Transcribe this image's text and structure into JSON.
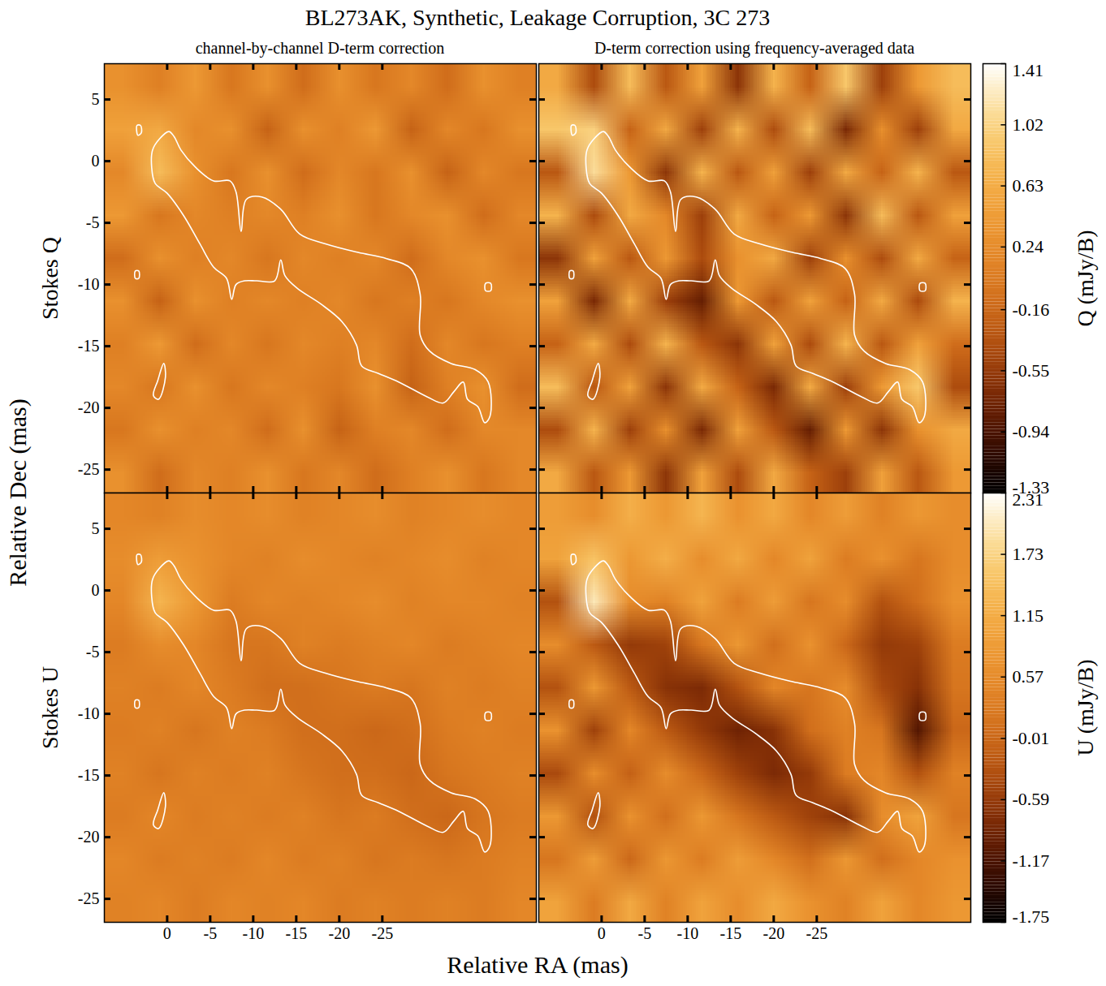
{
  "chart_data": {
    "type": "heatmap",
    "title": "BL273AK, Synthetic, Leakage Corruption, 3C 273",
    "xlabel": "Relative RA (mas)",
    "ylabel": "Relative Dec (mas)",
    "xlim": [
      7.3,
      -42.9
    ],
    "ylim": [
      -26.9,
      7.9
    ],
    "xticks": [
      0,
      -5,
      -10,
      -15,
      -20,
      -25
    ],
    "yticks": [
      5,
      0,
      -5,
      -10,
      -15,
      -20,
      -25
    ],
    "columns": [
      "channel-by-channel D-term correction",
      "D-term correction using frequency-averaged data"
    ],
    "rows": [
      {
        "name": "Stokes Q",
        "colorbar": {
          "label": "Q (mJy/B)",
          "range": [
            -1.33,
            1.41
          ],
          "ticks": [
            -1.33,
            -0.94,
            -0.55,
            -0.16,
            0.24,
            0.63,
            1.02,
            1.41
          ]
        },
        "cells": [
          [
            [
              0.3,
              0.1,
              0.4,
              0.0,
              0.3,
              -0.1,
              0.3,
              0.0,
              0.2,
              -0.1,
              0.3,
              0.1
            ],
            [
              0.5,
              0.6,
              0.2,
              0.3,
              -0.2,
              0.3,
              0.1,
              0.4,
              -0.2,
              0.2,
              0.0,
              0.3
            ],
            [
              0.2,
              0.8,
              0.3,
              0.0,
              0.3,
              -0.1,
              0.2,
              0.0,
              0.3,
              -0.2,
              0.2,
              0.0
            ],
            [
              0.4,
              0.0,
              0.2,
              0.1,
              0.2,
              0.1,
              0.3,
              0.0,
              0.2,
              0.3,
              -0.1,
              0.2
            ],
            [
              -0.1,
              0.3,
              0.1,
              0.2,
              0.0,
              0.2,
              0.1,
              0.2,
              -0.1,
              0.2,
              0.3,
              0.0
            ],
            [
              0.3,
              -0.2,
              0.3,
              0.1,
              0.2,
              0.1,
              0.2,
              0.0,
              0.1,
              0.0,
              0.2,
              0.3
            ],
            [
              0.1,
              0.4,
              -0.1,
              0.2,
              0.0,
              0.2,
              0.1,
              0.2,
              -0.1,
              0.2,
              0.0,
              0.1
            ],
            [
              0.2,
              0.0,
              0.3,
              0.0,
              0.2,
              0.1,
              0.0,
              0.3,
              -0.2,
              0.1,
              0.3,
              -0.1
            ],
            [
              0.0,
              0.3,
              0.1,
              0.2,
              -0.1,
              0.3,
              -0.2,
              0.1,
              0.2,
              -0.1,
              0.2,
              0.2
            ],
            [
              0.3,
              -0.1,
              0.2,
              0.1,
              0.3,
              0.0,
              0.2,
              -0.1,
              0.1,
              0.3,
              0.0,
              0.2
            ]
          ],
          [
            [
              0.6,
              -0.4,
              0.8,
              -0.3,
              0.5,
              -0.6,
              0.7,
              -0.2,
              0.9,
              -0.5,
              0.4,
              0.8
            ],
            [
              0.9,
              1.0,
              -0.2,
              0.6,
              -0.5,
              0.7,
              -0.4,
              0.8,
              -0.7,
              0.3,
              -0.5,
              0.6
            ],
            [
              -0.3,
              1.1,
              0.4,
              -0.6,
              0.7,
              -0.3,
              0.5,
              -0.5,
              0.6,
              -0.2,
              0.7,
              -0.3
            ],
            [
              0.7,
              -0.4,
              0.6,
              0.2,
              -0.5,
              0.6,
              -0.2,
              0.4,
              -0.6,
              0.8,
              -0.3,
              0.5
            ],
            [
              -0.6,
              0.5,
              -0.3,
              0.4,
              -0.4,
              0.3,
              0.6,
              -0.5,
              0.3,
              -0.4,
              0.6,
              -0.2
            ],
            [
              0.5,
              -0.7,
              0.6,
              -0.5,
              -0.8,
              0.4,
              -0.3,
              0.5,
              -0.2,
              0.6,
              -0.4,
              0.7
            ],
            [
              -0.2,
              0.6,
              -0.4,
              0.7,
              -0.3,
              -0.6,
              0.5,
              -0.4,
              0.7,
              -0.3,
              0.5,
              -0.1
            ],
            [
              0.8,
              -0.3,
              0.5,
              -0.6,
              0.6,
              -0.2,
              -0.7,
              0.6,
              -0.5,
              0.4,
              0.9,
              -0.4
            ],
            [
              -0.4,
              0.7,
              -0.5,
              0.3,
              -0.7,
              0.5,
              -0.3,
              -0.8,
              0.4,
              -0.6,
              0.3,
              0.6
            ],
            [
              0.6,
              -0.3,
              0.4,
              -0.6,
              0.5,
              -0.4,
              0.6,
              -0.2,
              -0.5,
              0.5,
              -0.3,
              0.4
            ]
          ]
        ]
      },
      {
        "name": "Stokes U",
        "colorbar": {
          "label": "U (mJy/B)",
          "range": [
            -1.75,
            2.31
          ],
          "ticks": [
            -1.75,
            -1.17,
            -0.59,
            -0.01,
            0.57,
            1.15,
            1.73,
            2.31
          ]
        },
        "cells": [
          [
            [
              0.5,
              0.4,
              0.6,
              0.5,
              0.6,
              0.4,
              0.5,
              0.6,
              0.4,
              0.5,
              0.6,
              0.5
            ],
            [
              0.6,
              0.9,
              0.7,
              0.5,
              0.4,
              0.6,
              0.5,
              0.4,
              0.5,
              0.6,
              0.4,
              0.5
            ],
            [
              0.5,
              1.3,
              0.8,
              0.3,
              0.5,
              0.4,
              0.5,
              0.6,
              0.4,
              0.5,
              0.5,
              0.4
            ],
            [
              0.3,
              0.6,
              0.5,
              0.2,
              0.2,
              0.4,
              0.3,
              0.4,
              0.5,
              0.3,
              0.4,
              0.5
            ],
            [
              0.4,
              0.3,
              0.5,
              0.3,
              0.1,
              0.1,
              0.2,
              0.3,
              0.2,
              0.4,
              0.3,
              0.4
            ],
            [
              0.3,
              0.4,
              0.2,
              0.4,
              0.3,
              0.1,
              0.1,
              0.0,
              0.1,
              0.3,
              0.4,
              0.3
            ],
            [
              0.4,
              0.2,
              0.4,
              0.3,
              0.4,
              0.2,
              0.1,
              0.1,
              0.0,
              0.2,
              0.3,
              0.4
            ],
            [
              0.3,
              0.5,
              0.3,
              0.4,
              0.3,
              0.4,
              0.2,
              0.3,
              0.1,
              0.0,
              0.2,
              0.3
            ],
            [
              0.5,
              0.3,
              0.4,
              0.3,
              0.5,
              0.3,
              0.4,
              0.2,
              0.3,
              0.2,
              0.3,
              0.4
            ],
            [
              0.4,
              0.5,
              0.3,
              0.5,
              0.4,
              0.5,
              0.3,
              0.4,
              0.3,
              0.4,
              0.3,
              0.5
            ]
          ],
          [
            [
              0.9,
              0.6,
              1.2,
              0.8,
              1.3,
              0.7,
              1.1,
              0.5,
              0.9,
              0.4,
              0.8,
              0.6
            ],
            [
              1.0,
              1.5,
              0.8,
              1.2,
              0.6,
              1.1,
              0.5,
              1.0,
              0.3,
              0.7,
              0.2,
              0.6
            ],
            [
              -0.3,
              2.0,
              0.6,
              0.4,
              1.0,
              0.3,
              0.9,
              0.2,
              0.6,
              -0.3,
              0.1,
              0.7
            ],
            [
              0.6,
              -0.2,
              -0.6,
              -0.5,
              0.2,
              0.8,
              0.1,
              0.7,
              0.0,
              -0.6,
              -0.5,
              0.3
            ],
            [
              -0.3,
              0.8,
              -0.2,
              -0.7,
              -0.8,
              -0.3,
              0.5,
              0.2,
              0.6,
              -0.4,
              -0.7,
              0.2
            ],
            [
              0.7,
              -0.5,
              0.5,
              -0.2,
              -0.6,
              -0.9,
              -0.7,
              0.1,
              0.4,
              0.2,
              -1.1,
              0.0
            ],
            [
              -0.4,
              0.6,
              -0.1,
              0.6,
              0.0,
              -0.5,
              -0.8,
              -0.6,
              0.3,
              0.5,
              -0.3,
              0.4
            ],
            [
              0.8,
              -0.3,
              0.7,
              0.1,
              0.8,
              0.2,
              -0.2,
              -0.5,
              -0.7,
              0.6,
              1.0,
              0.2
            ],
            [
              0.2,
              0.9,
              0.0,
              0.8,
              0.3,
              0.9,
              0.5,
              0.1,
              0.8,
              0.1,
              0.5,
              0.7
            ],
            [
              1.0,
              0.3,
              1.1,
              0.4,
              1.0,
              0.6,
              1.1,
              0.7,
              0.4,
              1.0,
              0.5,
              0.8
            ]
          ]
        ]
      }
    ],
    "contours": [
      [
        [
          1.8,
          -0.5
        ],
        [
          1.7,
          0.9
        ],
        [
          0.9,
          1.8
        ],
        [
          -0.2,
          2.4
        ],
        [
          -0.8,
          2.0
        ],
        [
          -1.6,
          0.9
        ],
        [
          -3.3,
          -0.5
        ],
        [
          -5.4,
          -1.6
        ],
        [
          -7.3,
          -1.6
        ],
        [
          -8.0,
          -2.5
        ],
        [
          -8.6,
          -5.7
        ],
        [
          -9.2,
          -3.1
        ],
        [
          -11.0,
          -2.9
        ],
        [
          -13.2,
          -3.9
        ],
        [
          -15.4,
          -5.9
        ],
        [
          -18.4,
          -6.7
        ],
        [
          -22.2,
          -7.4
        ],
        [
          -25.5,
          -7.9
        ],
        [
          -28.3,
          -8.7
        ],
        [
          -29.4,
          -10.8
        ],
        [
          -29.4,
          -14.1
        ],
        [
          -30.5,
          -15.4
        ],
        [
          -33.0,
          -16.4
        ],
        [
          -35.8,
          -16.9
        ],
        [
          -37.3,
          -17.9
        ],
        [
          -37.5,
          -20.7
        ],
        [
          -36.9,
          -21.2
        ],
        [
          -36.1,
          -19.9
        ],
        [
          -34.9,
          -19.3
        ],
        [
          -34.4,
          -17.9
        ],
        [
          -33.3,
          -18.7
        ],
        [
          -32.1,
          -19.6
        ],
        [
          -30.2,
          -19.1
        ],
        [
          -26.9,
          -17.9
        ],
        [
          -24.5,
          -17.2
        ],
        [
          -22.6,
          -16.6
        ],
        [
          -22.0,
          -14.9
        ],
        [
          -20.3,
          -13.0
        ],
        [
          -17.9,
          -11.6
        ],
        [
          -15.1,
          -10.3
        ],
        [
          -13.7,
          -9.3
        ],
        [
          -13.2,
          -8.0
        ],
        [
          -12.5,
          -9.7
        ],
        [
          -10.4,
          -9.7
        ],
        [
          -9.0,
          -9.7
        ],
        [
          -8.0,
          -10.0
        ],
        [
          -7.5,
          -11.2
        ],
        [
          -6.9,
          -9.5
        ],
        [
          -5.4,
          -8.6
        ],
        [
          -3.8,
          -6.7
        ],
        [
          -1.9,
          -4.4
        ],
        [
          0.0,
          -2.6
        ],
        [
          1.4,
          -1.8
        ]
      ],
      [
        [
          3.5,
          2.9
        ],
        [
          3.1,
          2.9
        ],
        [
          3.0,
          2.3
        ],
        [
          3.4,
          2.1
        ]
      ],
      [
        [
          0.4,
          -16.4
        ],
        [
          0.2,
          -17.5
        ],
        [
          1.0,
          -19.3
        ],
        [
          1.6,
          -19.0
        ],
        [
          1.1,
          -17.8
        ]
      ],
      [
        [
          -37.0,
          -9.9
        ],
        [
          -37.6,
          -9.9
        ],
        [
          -37.6,
          -10.5
        ],
        [
          -37.0,
          -10.5
        ]
      ],
      [
        [
          3.7,
          -8.9
        ],
        [
          3.3,
          -8.9
        ],
        [
          3.3,
          -9.5
        ],
        [
          3.7,
          -9.5
        ]
      ]
    ]
  }
}
